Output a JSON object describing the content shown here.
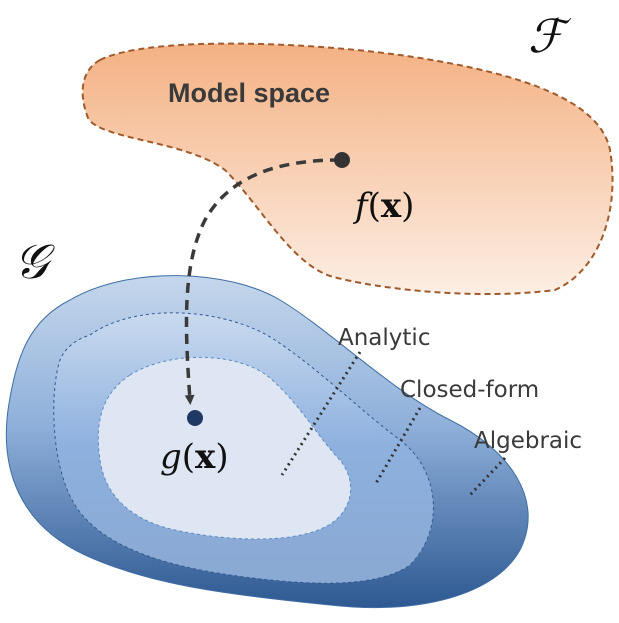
{
  "diagram": {
    "model_space": {
      "title": "Model space",
      "set_symbol": "ℱ",
      "point_label_func": "f",
      "point_label_var": "x"
    },
    "target_space": {
      "set_symbol": "𝒢",
      "point_label_func": "g",
      "point_label_var": "x"
    },
    "regions": {
      "analytic": "Analytic",
      "closed_form": "Closed-form",
      "algebraic": "Algebraic"
    },
    "colors": {
      "model_space_fill_top": "#f4b183",
      "model_space_fill_bottom": "#fde9dc",
      "model_space_border": "#a05a2c",
      "outer_fill_top": "#b6cde6",
      "outer_fill_bottom": "#2f5a92",
      "middle_fill": "#8fb1dc",
      "inner_fill": "#dce6f2",
      "point": "#1f3864",
      "arrow": "#3a3a3a"
    }
  }
}
